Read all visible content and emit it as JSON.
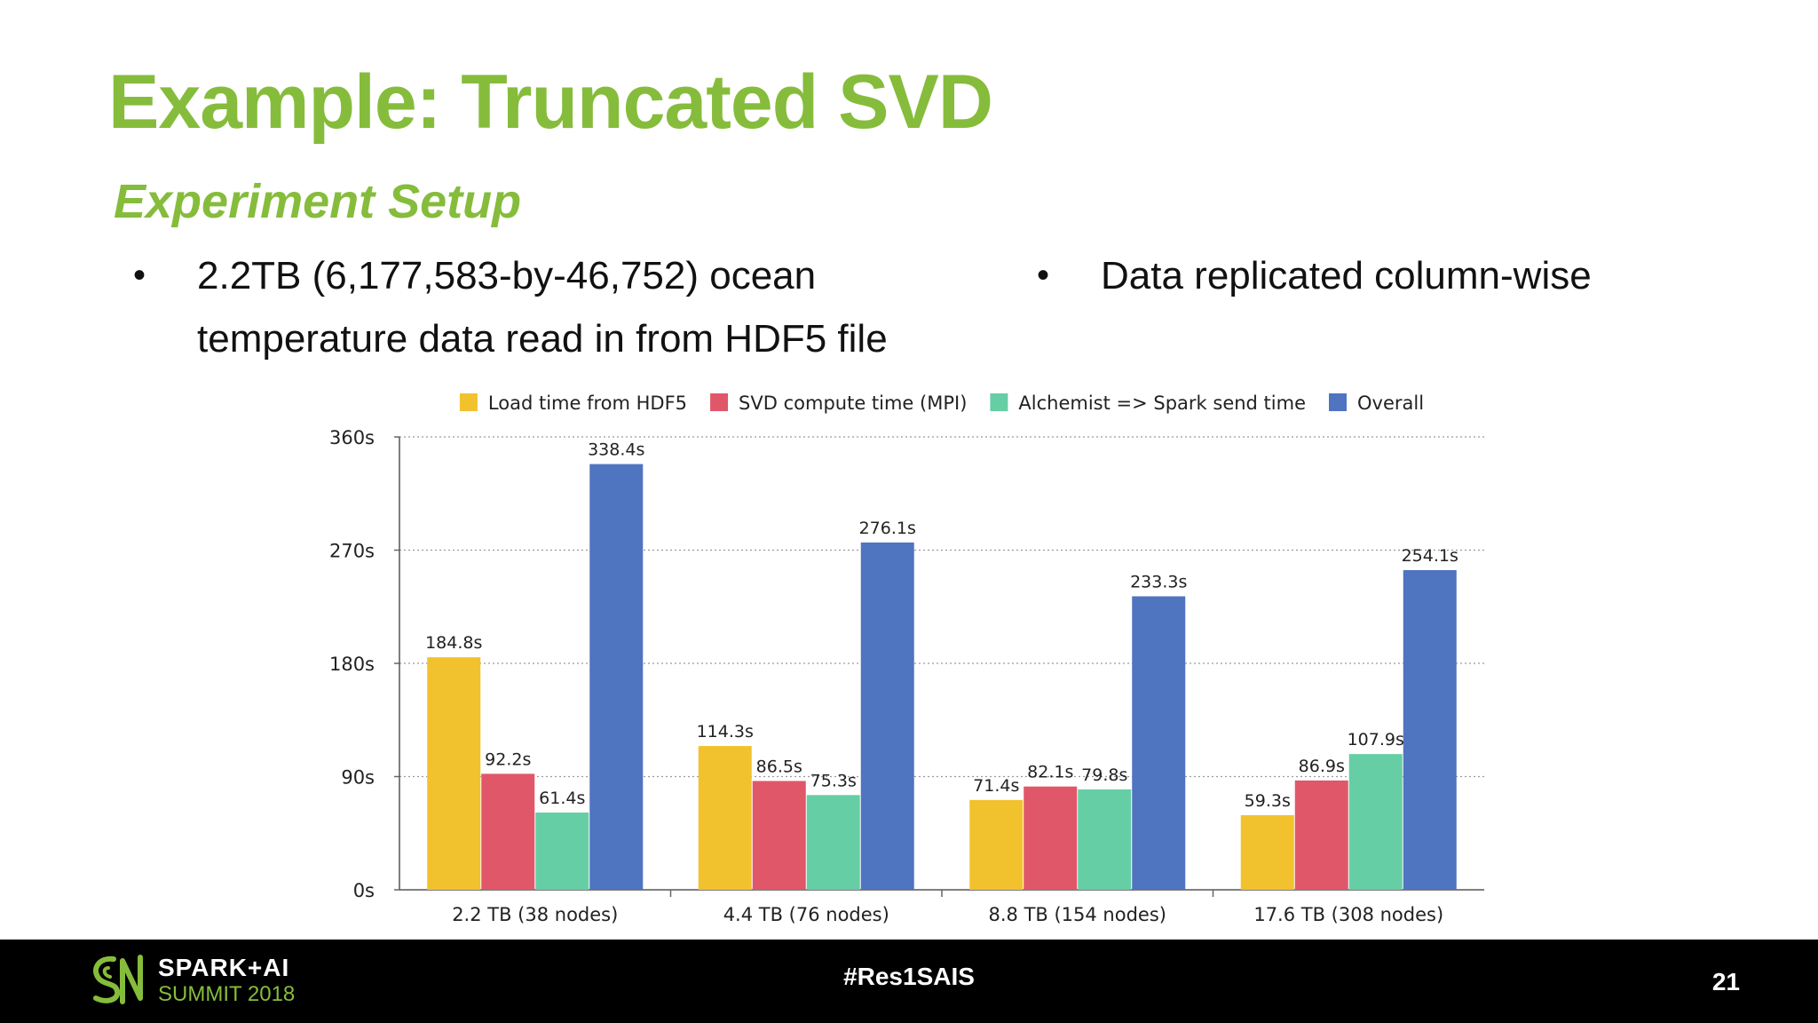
{
  "slide": {
    "title": "Example: Truncated SVD",
    "subtitle": "Experiment Setup",
    "bullets": [
      {
        "marker": "•",
        "lines": [
          "2.2TB (6,177,583-by-46,752) ocean",
          "temperature data read in from HDF5 file"
        ]
      },
      {
        "marker": "•",
        "lines": [
          "Data replicated column-wise"
        ]
      }
    ]
  },
  "chart_data": {
    "type": "bar",
    "title": "",
    "xlabel": "",
    "ylabel": "",
    "categories": [
      "2.2 TB (38 nodes)",
      "4.4 TB (76 nodes)",
      "8.8 TB (154 nodes)",
      "17.6 TB (308 nodes)"
    ],
    "series": [
      {
        "name": "Load time from HDF5",
        "color": "#f2c12e",
        "values": [
          184.8,
          114.3,
          71.4,
          59.3
        ],
        "labels": [
          "184.8s",
          "114.3s",
          "71.4s",
          "59.3s"
        ]
      },
      {
        "name": "SVD compute time (MPI)",
        "color": "#e05769",
        "values": [
          92.2,
          86.5,
          82.1,
          86.9
        ],
        "labels": [
          "92.2s",
          "86.5s",
          "82.1s",
          "86.9s"
        ]
      },
      {
        "name": "Alchemist => Spark send time",
        "color": "#66cea5",
        "values": [
          61.4,
          75.3,
          79.8,
          107.9
        ],
        "labels": [
          "61.4s",
          "75.3s",
          "79.8s",
          "107.9s"
        ]
      },
      {
        "name": "Overall",
        "color": "#4f74c0",
        "values": [
          338.4,
          276.1,
          233.3,
          254.1
        ],
        "labels": [
          "338.4s",
          "276.1s",
          "233.3s",
          "254.1s"
        ]
      }
    ],
    "ylim": [
      0,
      360
    ],
    "yticks": [
      0,
      90,
      180,
      270,
      360
    ],
    "ytick_labels": [
      "0s",
      "90s",
      "180s",
      "270s",
      "360s"
    ],
    "grid": true,
    "legend_position": "top"
  },
  "footer": {
    "brand_line1": "SPARK+AI",
    "brand_line2": "SUMMIT 2018",
    "hashtag": "#Res1SAIS",
    "page_number": "21",
    "brand_color": "#86bc3b"
  }
}
